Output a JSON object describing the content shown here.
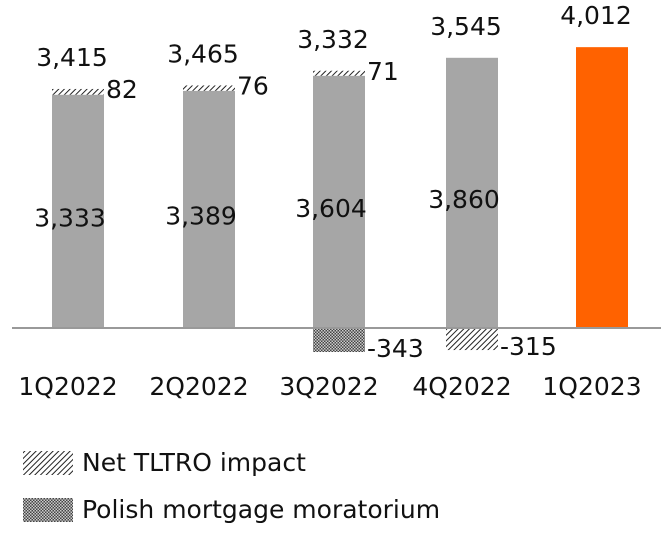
{
  "chart_data": {
    "type": "bar",
    "stacked": true,
    "categories": [
      "1Q2022",
      "2Q2022",
      "3Q2022",
      "4Q2022",
      "1Q2023"
    ],
    "ylim": [
      -500,
      4500
    ],
    "series": [
      {
        "colors": [
          "#a6a6a6",
          "#a6a6a6",
          "#a6a6a6",
          "#a6a6a6",
          "#ff6200"
        ],
        "values": [
          3333,
          3389,
          3604,
          3860,
          4012
        ],
        "value_labels": [
          "3,333",
          "3,389",
          "3,604",
          "3,860",
          null
        ]
      },
      {
        "name": "Net TLTRO impact",
        "color": "#222222",
        "pattern": "diagonal",
        "values": [
          82,
          76,
          71,
          -315,
          null
        ]
      },
      {
        "name": "Polish mortgage moratorium",
        "color": "#333333",
        "pattern": "dense",
        "values": [
          null,
          null,
          -343,
          null,
          null
        ]
      }
    ],
    "totals": [
      3415,
      3465,
      3332,
      3545,
      4012
    ],
    "totals_labels": [
      "3,415",
      "3,465",
      "3,332",
      "3,545",
      "4,012"
    ]
  }
}
